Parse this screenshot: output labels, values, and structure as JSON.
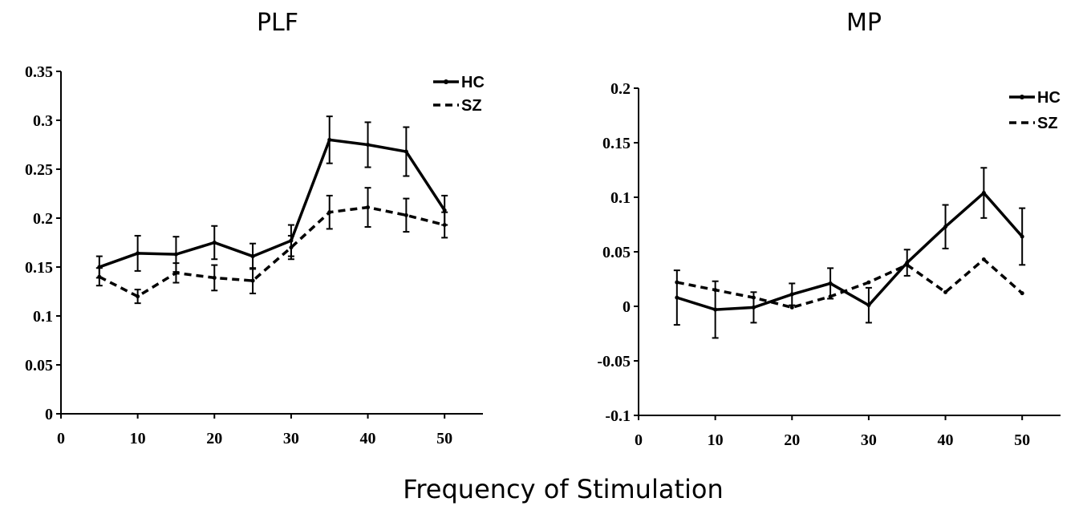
{
  "figure": {
    "shared_xlabel": "Frequency of Stimulation"
  },
  "chart_data": [
    {
      "type": "line",
      "title": "PLF",
      "xlabel": "",
      "ylabel": "",
      "xlim": [
        0,
        55
      ],
      "ylim": [
        0,
        0.35
      ],
      "xticks": [
        "0",
        "10",
        "20",
        "30",
        "40",
        "50"
      ],
      "yticks": [
        "0",
        "0.05",
        "0.1",
        "0.15",
        "0.2",
        "0.25",
        "0.3",
        "0.35"
      ],
      "x": [
        5,
        10,
        15,
        20,
        25,
        30,
        35,
        40,
        45,
        50
      ],
      "legend": "top-right",
      "grid": false,
      "series": [
        {
          "name": "HC",
          "style": "solid",
          "values": [
            0.15,
            0.164,
            0.163,
            0.175,
            0.161,
            0.177,
            0.28,
            0.275,
            0.268,
            0.208
          ],
          "errors": [
            0.011,
            0.018,
            0.018,
            0.017,
            0.013,
            0.016,
            0.024,
            0.023,
            0.025,
            0.015
          ]
        },
        {
          "name": "SZ",
          "style": "dashed",
          "values": [
            0.14,
            0.12,
            0.144,
            0.139,
            0.136,
            0.17,
            0.206,
            0.211,
            0.203,
            0.193
          ],
          "errors": [
            0.009,
            0.007,
            0.01,
            0.013,
            0.013,
            0.012,
            0.017,
            0.02,
            0.017,
            0.013
          ]
        }
      ]
    },
    {
      "type": "line",
      "title": "MP",
      "xlabel": "",
      "ylabel": "",
      "xlim": [
        0,
        55
      ],
      "ylim": [
        -0.1,
        0.2
      ],
      "xticks": [
        "0",
        "10",
        "20",
        "30",
        "40",
        "50"
      ],
      "yticks": [
        "-0.1",
        "-0.05",
        "0",
        "0.05",
        "0.1",
        "0.15",
        "0.2"
      ],
      "x": [
        5,
        10,
        15,
        20,
        25,
        30,
        35,
        40,
        45,
        50
      ],
      "legend": "top-right",
      "grid": false,
      "series": [
        {
          "name": "HC",
          "style": "solid",
          "values": [
            0.008,
            -0.003,
            -0.001,
            0.011,
            0.021,
            0.001,
            0.04,
            0.073,
            0.104,
            0.064
          ],
          "errors": [
            0.025,
            0.026,
            0.014,
            0.01,
            0.014,
            0.016,
            0.012,
            0.02,
            0.023,
            0.026
          ]
        },
        {
          "name": "SZ",
          "style": "dashed",
          "values": [
            0.022,
            0.015,
            0.008,
            -0.001,
            0.009,
            0.022,
            0.038,
            0.013,
            0.043,
            0.012
          ]
        }
      ]
    }
  ]
}
